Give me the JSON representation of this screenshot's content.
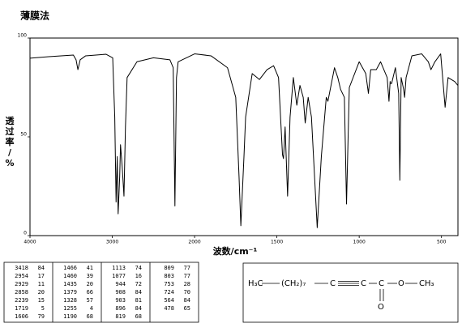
{
  "chart_data": {
    "type": "line",
    "title": "薄膜法",
    "y_label": "透过率/%",
    "x_label": "波数/cm⁻¹",
    "xlim": [
      4000,
      400
    ],
    "xscale_break": 2000,
    "xticks": [
      4000,
      3000,
      2000,
      1500,
      1000,
      500
    ],
    "ylim": [
      0,
      100
    ],
    "yticks": [
      0,
      50,
      100
    ],
    "series": [
      {
        "name": "spectrum",
        "color": "#000000",
        "x": [
          4000,
          3771,
          3473,
          3440,
          3418,
          3390,
          3324,
          3075,
          2995,
          2970,
          2954,
          2940,
          2929,
          2910,
          2900,
          2880,
          2858,
          2840,
          2820,
          2700,
          2500,
          2300,
          2260,
          2239,
          2220,
          2200,
          2000,
          1900,
          1800,
          1750,
          1730,
          1719,
          1700,
          1690,
          1650,
          1606,
          1560,
          1520,
          1490,
          1466,
          1460,
          1450,
          1435,
          1420,
          1400,
          1379,
          1360,
          1340,
          1328,
          1310,
          1290,
          1255,
          1230,
          1200,
          1190,
          1150,
          1130,
          1113,
          1090,
          1077,
          1060,
          1000,
          960,
          944,
          930,
          908,
          896,
          870,
          830,
          819,
          812,
          809,
          803,
          780,
          760,
          753,
          745,
          730,
          724,
          715,
          680,
          620,
          580,
          564,
          540,
          505,
          478,
          460,
          420,
          400
        ],
        "values": [
          89.8,
          90.6,
          91.4,
          89,
          84,
          89,
          91,
          91.8,
          90,
          60,
          17,
          40,
          11,
          30,
          46,
          35,
          20,
          55,
          80,
          88,
          90,
          89,
          85,
          15,
          80,
          88,
          92,
          91,
          85,
          70,
          30,
          5,
          40,
          60,
          82,
          79,
          84,
          86,
          80,
          41,
          39,
          55,
          20,
          60,
          80,
          66,
          76,
          70,
          57,
          70,
          60,
          4,
          40,
          70,
          68,
          85,
          80,
          74,
          70,
          16,
          75,
          88,
          82,
          72,
          84,
          84,
          84,
          88,
          80,
          68,
          78,
          77,
          77,
          85,
          72,
          28,
          80,
          74,
          70,
          80,
          91,
          92,
          88,
          84,
          88,
          92,
          65,
          80,
          78,
          76
        ]
      }
    ]
  },
  "peak_table": [
    [
      [
        "3418",
        "84"
      ],
      [
        "2954",
        "17"
      ],
      [
        "2929",
        "11"
      ],
      [
        "2858",
        "20"
      ],
      [
        "2239",
        "15"
      ],
      [
        "1719",
        "5"
      ],
      [
        "1606",
        "79"
      ]
    ],
    [
      [
        "1466",
        "41"
      ],
      [
        "1460",
        "39"
      ],
      [
        "1435",
        "20"
      ],
      [
        "1379",
        "66"
      ],
      [
        "1328",
        "57"
      ],
      [
        "1255",
        "4"
      ],
      [
        "1190",
        "68"
      ]
    ],
    [
      [
        "1113",
        "74"
      ],
      [
        "1077",
        "16"
      ],
      [
        "944",
        "72"
      ],
      [
        "908",
        "84"
      ],
      [
        "903",
        "81"
      ],
      [
        "896",
        "84"
      ],
      [
        "819",
        "68"
      ]
    ],
    [
      [
        "809",
        "77"
      ],
      [
        "803",
        "77"
      ],
      [
        "753",
        "28"
      ],
      [
        "724",
        "70"
      ],
      [
        "564",
        "84"
      ],
      [
        "478",
        "65"
      ]
    ]
  ],
  "structure": {
    "atoms": [
      "H₃C",
      "(CH₂)₇",
      "C",
      "C",
      "C",
      "O",
      "CH₃",
      "O"
    ]
  }
}
